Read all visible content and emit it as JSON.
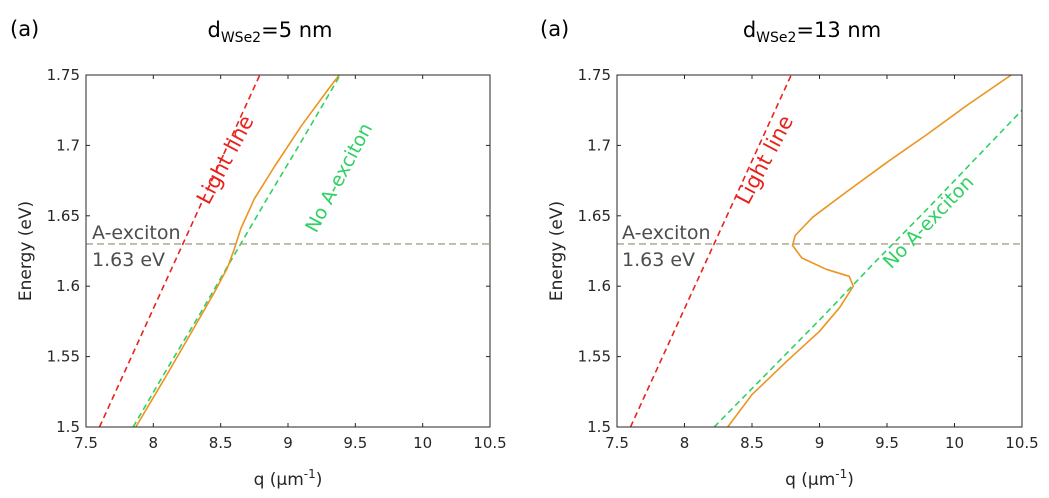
{
  "chart_data": [
    {
      "type": "line",
      "panel_label": "(a)",
      "title": {
        "prefix": "d",
        "subscript": "WSe2",
        "suffix": "=5 nm"
      },
      "xlabel": {
        "text": "q (μm",
        "superscript": "-1",
        "close": ")"
      },
      "ylabel": "Energy (eV)",
      "xlim": [
        7.5,
        10.5
      ],
      "ylim": [
        1.5,
        1.75
      ],
      "xticks": [
        "7.5",
        "8",
        "8.5",
        "9",
        "9.5",
        "10",
        "10.5"
      ],
      "yticks": [
        "1.5",
        "1.55",
        "1.6",
        "1.65",
        "1.7",
        "1.75"
      ],
      "grid": false,
      "exciton_energy": 1.63,
      "annotations": {
        "line1": "A-exciton",
        "line2": "1.63 eV"
      },
      "labels": {
        "light_line": "Light line",
        "no_exciton": "No A-exciton"
      },
      "series": [
        {
          "style": "dashed",
          "color": "#e8221c",
          "x": [
            7.6,
            7.8,
            8.0,
            8.2,
            8.4,
            8.6,
            8.8
          ],
          "y": [
            1.5,
            1.542,
            1.584,
            1.626,
            1.668,
            1.71,
            1.752
          ]
        },
        {
          "style": "dashed",
          "color": "#2fd163",
          "x": [
            7.85,
            8.1,
            8.35,
            8.6,
            8.85,
            9.1,
            9.4
          ],
          "y": [
            1.5,
            1.541,
            1.581,
            1.622,
            1.663,
            1.703,
            1.752
          ]
        },
        {
          "style": "solid",
          "color": "#ec9420",
          "x": [
            7.87,
            8.1,
            8.3,
            8.45,
            8.55,
            8.6,
            8.62,
            8.65,
            8.75,
            8.9,
            9.1,
            9.3,
            9.38
          ],
          "y": [
            1.5,
            1.537,
            1.57,
            1.595,
            1.613,
            1.626,
            1.632,
            1.641,
            1.662,
            1.685,
            1.714,
            1.74,
            1.75
          ]
        }
      ]
    },
    {
      "type": "line",
      "panel_label": "(a)",
      "title": {
        "prefix": "d",
        "subscript": "WSe2",
        "suffix": "=13 nm"
      },
      "xlabel": {
        "text": "q (μm",
        "superscript": "-1",
        "close": ")"
      },
      "ylabel": "Energy (eV)",
      "xlim": [
        7.5,
        10.5
      ],
      "ylim": [
        1.5,
        1.75
      ],
      "xticks": [
        "7.5",
        "8",
        "8.5",
        "9",
        "9.5",
        "10",
        "10.5"
      ],
      "yticks": [
        "1.5",
        "1.55",
        "1.6",
        "1.65",
        "1.7",
        "1.75"
      ],
      "grid": false,
      "exciton_energy": 1.63,
      "annotations": {
        "line1": "A-exciton",
        "line2": "1.63 eV"
      },
      "labels": {
        "light_line": "Light line",
        "no_exciton": "No A-exciton"
      },
      "series": [
        {
          "style": "dashed",
          "color": "#e8221c",
          "x": [
            7.6,
            7.8,
            8.0,
            8.2,
            8.4,
            8.6,
            8.8
          ],
          "y": [
            1.5,
            1.542,
            1.584,
            1.626,
            1.668,
            1.71,
            1.752
          ]
        },
        {
          "style": "dashed",
          "color": "#2fd163",
          "x": [
            8.22,
            8.6,
            9.0,
            9.4,
            9.8,
            10.2,
            10.5
          ],
          "y": [
            1.5,
            1.537,
            1.576,
            1.616,
            1.655,
            1.695,
            1.725
          ]
        },
        {
          "style": "solid",
          "color": "#ec9420",
          "x": [
            8.32,
            8.5,
            8.75,
            9.0,
            9.15,
            9.25,
            9.22,
            9.05,
            8.87,
            8.8,
            8.82,
            8.95,
            9.2,
            9.5,
            9.8,
            10.1,
            10.42
          ],
          "y": [
            1.5,
            1.523,
            1.546,
            1.568,
            1.585,
            1.6,
            1.607,
            1.612,
            1.62,
            1.629,
            1.636,
            1.649,
            1.667,
            1.688,
            1.708,
            1.729,
            1.75
          ]
        }
      ]
    }
  ]
}
